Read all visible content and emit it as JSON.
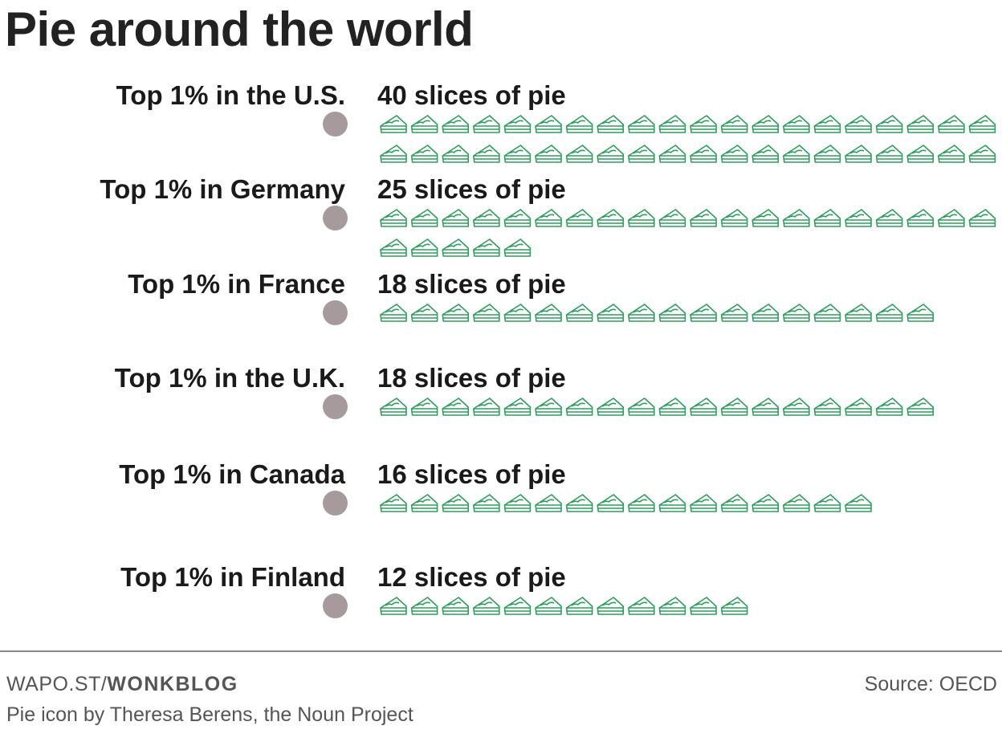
{
  "title": "Pie around the world",
  "chart_data": {
    "type": "pictogram",
    "title": "Pie around the world",
    "unit_icon": "pie-slice-icon",
    "icon_color": "#2e9e5e",
    "dot_color": "#a69a9c",
    "categories": [
      "Top 1% in the U.S.",
      "Top 1% in Germany",
      "Top 1% in France",
      "Top 1% in the U.K.",
      "Top 1% in Canada",
      "Top 1% in Finland"
    ],
    "values": [
      40,
      25,
      18,
      18,
      16,
      12
    ],
    "value_labels": [
      "40 slices of pie",
      "25 slices of pie",
      "18 slices of pie",
      "18 slices of pie",
      "16 slices of pie",
      "12 slices of pie"
    ]
  },
  "footer": {
    "brand_prefix": "WAPO.ST/",
    "brand_name": "WONKBLOG",
    "credit": "Pie icon by Theresa Berens, the Noun Project",
    "source": "Source: OECD"
  }
}
